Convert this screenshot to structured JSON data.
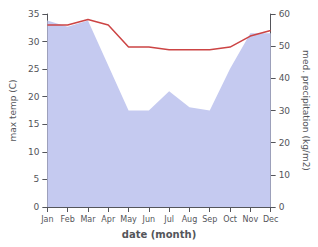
{
  "chart_data": {
    "type": "line",
    "categories": [
      "Jan",
      "Feb",
      "Mar",
      "Apr",
      "May",
      "Jun",
      "Jul",
      "Aug",
      "Sep",
      "Oct",
      "Nov",
      "Dec"
    ],
    "xlabel": "date (month)",
    "ylabel": "max temp (C)",
    "y2label": "med. precipitation (kg/m2)",
    "series": [
      {
        "type": "area",
        "color": "#c5caf0",
        "axis": "y2",
        "values": [
          58,
          56,
          58,
          44,
          30,
          30,
          36,
          31,
          30,
          43,
          54,
          54
        ]
      },
      {
        "type": "line",
        "color": "#cc4444",
        "values": [
          33,
          33,
          34,
          33,
          29,
          29,
          28.5,
          28.5,
          28.5,
          29,
          31,
          32
        ]
      }
    ],
    "ylim": [
      0,
      35
    ],
    "yticks": [
      0,
      5,
      10,
      15,
      20,
      25,
      30,
      35
    ],
    "y2lim": [
      0,
      60
    ],
    "y2ticks": [
      0,
      10,
      20,
      30,
      40,
      50,
      60
    ],
    "grid": false
  }
}
